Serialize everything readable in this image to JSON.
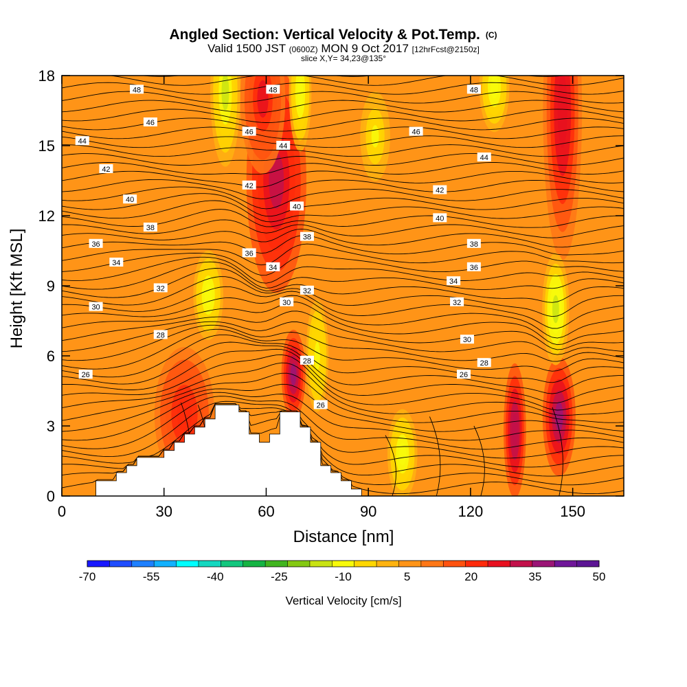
{
  "header": {
    "title_main": "Angled Section: Vertical Velocity & Pot.Temp.",
    "title_unit": "(C)",
    "valid_prefix": "Valid 1500 JST",
    "valid_utc": "(0600Z)",
    "valid_date": "MON 9 Oct 2017",
    "forecast": "[12hrFcst@2150z]",
    "slice": "slice X,Y= 34,23@135°"
  },
  "chart_data": {
    "type": "heatmap",
    "title": "Angled Section: Vertical Velocity & Pot.Temp. (C)",
    "xlabel": "Distance [nm]",
    "ylabel": "Height [Kft MSL]",
    "xlim": [
      0,
      165
    ],
    "ylim": [
      0,
      18
    ],
    "x_ticks": [
      0,
      30,
      60,
      90,
      120,
      150
    ],
    "y_ticks": [
      0,
      3,
      6,
      9,
      12,
      15,
      18
    ],
    "background_level_cm_s": 5,
    "colorbar": {
      "label": "Vertical Velocity [cm/s]",
      "min": -70,
      "max": 50,
      "tick_labels": [
        -70,
        -55,
        -40,
        -25,
        -10,
        5,
        20,
        35,
        50
      ],
      "colors": [
        "#1818ff",
        "#1f4dff",
        "#1e80ff",
        "#12b1ff",
        "#00ffff",
        "#14d8c0",
        "#13c77e",
        "#15b443",
        "#41b51f",
        "#84c912",
        "#c9e313",
        "#f8fa0a",
        "#ffd700",
        "#ffb310",
        "#ff9417",
        "#ff7716",
        "#ff520f",
        "#ff2a0a",
        "#e8101f",
        "#c2104a",
        "#9b1576",
        "#6f1699",
        "#5c1594"
      ]
    },
    "terrain_profile_nm_kft": [
      [
        10,
        0
      ],
      [
        10,
        0.65
      ],
      [
        16,
        0.65
      ],
      [
        16,
        1
      ],
      [
        19,
        1
      ],
      [
        19,
        1.3
      ],
      [
        22,
        1.3
      ],
      [
        22,
        1.65
      ],
      [
        30,
        1.65
      ],
      [
        30,
        1.95
      ],
      [
        33,
        1.95
      ],
      [
        33,
        2.3
      ],
      [
        36,
        2.3
      ],
      [
        36,
        2.65
      ],
      [
        39,
        2.65
      ],
      [
        39,
        2.95
      ],
      [
        42,
        2.95
      ],
      [
        42,
        3.3
      ],
      [
        45,
        3.3
      ],
      [
        45,
        3.9
      ],
      [
        52,
        3.9
      ],
      [
        52,
        3.6
      ],
      [
        55,
        3.6
      ],
      [
        55,
        2.65
      ],
      [
        58,
        2.65
      ],
      [
        58,
        2.3
      ],
      [
        61,
        2.3
      ],
      [
        61,
        2.65
      ],
      [
        64,
        2.65
      ],
      [
        64,
        3.6
      ],
      [
        70,
        3.6
      ],
      [
        70,
        2.95
      ],
      [
        73,
        2.95
      ],
      [
        73,
        2.3
      ],
      [
        76,
        2.3
      ],
      [
        76,
        1.3
      ],
      [
        79,
        1.3
      ],
      [
        79,
        1
      ],
      [
        82,
        1
      ],
      [
        82,
        0.65
      ],
      [
        85,
        0.65
      ],
      [
        85,
        0.3
      ],
      [
        88,
        0.3
      ],
      [
        88,
        0
      ]
    ],
    "potential_temperature_labels": [
      {
        "x": 22,
        "y": 17.4,
        "value": "48"
      },
      {
        "x": 62,
        "y": 17.4,
        "value": "48"
      },
      {
        "x": 121,
        "y": 17.4,
        "value": "48"
      },
      {
        "x": 26,
        "y": 16.0,
        "value": "46"
      },
      {
        "x": 55,
        "y": 15.6,
        "value": "46"
      },
      {
        "x": 104,
        "y": 15.6,
        "value": "46"
      },
      {
        "x": 6,
        "y": 15.2,
        "value": "44"
      },
      {
        "x": 65,
        "y": 15.0,
        "value": "44"
      },
      {
        "x": 124,
        "y": 14.5,
        "value": "44"
      },
      {
        "x": 13,
        "y": 14.0,
        "value": "42"
      },
      {
        "x": 55,
        "y": 13.3,
        "value": "42"
      },
      {
        "x": 111,
        "y": 13.1,
        "value": "42"
      },
      {
        "x": 20,
        "y": 12.7,
        "value": "40"
      },
      {
        "x": 69,
        "y": 12.4,
        "value": "40"
      },
      {
        "x": 111,
        "y": 11.9,
        "value": "40"
      },
      {
        "x": 26,
        "y": 11.5,
        "value": "38"
      },
      {
        "x": 72,
        "y": 11.1,
        "value": "38"
      },
      {
        "x": 121,
        "y": 10.8,
        "value": "38"
      },
      {
        "x": 10,
        "y": 10.8,
        "value": "36"
      },
      {
        "x": 55,
        "y": 10.4,
        "value": "36"
      },
      {
        "x": 121,
        "y": 9.8,
        "value": "36"
      },
      {
        "x": 16,
        "y": 10.0,
        "value": "34"
      },
      {
        "x": 62,
        "y": 9.8,
        "value": "34"
      },
      {
        "x": 115,
        "y": 9.2,
        "value": "34"
      },
      {
        "x": 29,
        "y": 8.9,
        "value": "32"
      },
      {
        "x": 72,
        "y": 8.8,
        "value": "32"
      },
      {
        "x": 116,
        "y": 8.3,
        "value": "32"
      },
      {
        "x": 10,
        "y": 8.1,
        "value": "30"
      },
      {
        "x": 66,
        "y": 8.3,
        "value": "30"
      },
      {
        "x": 119,
        "y": 6.7,
        "value": "30"
      },
      {
        "x": 29,
        "y": 6.9,
        "value": "28"
      },
      {
        "x": 72,
        "y": 5.8,
        "value": "28"
      },
      {
        "x": 124,
        "y": 5.7,
        "value": "28"
      },
      {
        "x": 7,
        "y": 5.2,
        "value": "26"
      },
      {
        "x": 76,
        "y": 3.9,
        "value": "26"
      },
      {
        "x": 118,
        "y": 5.2,
        "value": "26"
      }
    ],
    "vertical_velocity_features": [
      {
        "x": 63,
        "y": 13.5,
        "sx": 4,
        "sy": 3.0,
        "value": 33
      },
      {
        "x": 68,
        "y": 5.2,
        "sx": 1.6,
        "sy": 1.2,
        "value": 36
      },
      {
        "x": 146,
        "y": 3.4,
        "sx": 2.2,
        "sy": 1.6,
        "value": 36
      },
      {
        "x": 133,
        "y": 2.8,
        "sx": 1.5,
        "sy": 1.8,
        "value": 34
      },
      {
        "x": 147,
        "y": 16.5,
        "sx": 2.6,
        "sy": 4.0,
        "value": 28
      },
      {
        "x": 59,
        "y": 17,
        "sx": 3,
        "sy": 2,
        "value": 24
      },
      {
        "x": 36,
        "y": 3.5,
        "sx": 4,
        "sy": 1.8,
        "value": 22
      },
      {
        "x": 100,
        "y": 1.8,
        "sx": 2,
        "sy": 1.2,
        "value": -10
      },
      {
        "x": 145,
        "y": 8.0,
        "sx": 1.8,
        "sy": 1.5,
        "value": -14
      },
      {
        "x": 48,
        "y": 17.3,
        "sx": 2,
        "sy": 2,
        "value": -13
      },
      {
        "x": 70,
        "y": 17.3,
        "sx": 1.5,
        "sy": 1.6,
        "value": -12
      },
      {
        "x": 127,
        "y": 17.5,
        "sx": 2,
        "sy": 1.2,
        "value": -12
      },
      {
        "x": 43,
        "y": 8.6,
        "sx": 2,
        "sy": 1.2,
        "value": -11
      },
      {
        "x": 75,
        "y": 6.0,
        "sx": 1.5,
        "sy": 1.5,
        "value": -9
      },
      {
        "x": 92,
        "y": 15.4,
        "sx": 2,
        "sy": 1.2,
        "value": -8
      }
    ]
  }
}
